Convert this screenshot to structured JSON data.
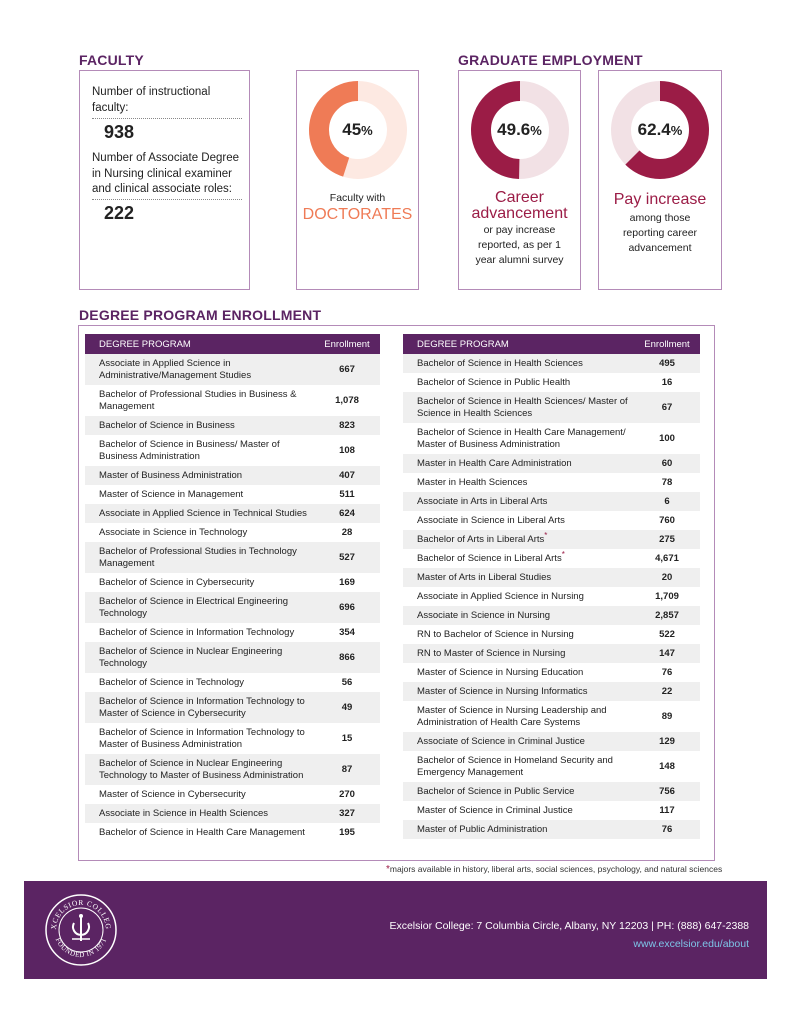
{
  "faculty": {
    "title": "FACULTY",
    "instr_label": "Number of instructional faculty:",
    "instr_value": "938",
    "nursing_label": "Number of Associate Degree in Nursing clinical examiner and clinical associate roles:",
    "nursing_value": "222",
    "doctorates": {
      "percent": "45",
      "pct_value": 45,
      "symbol": "%",
      "caption": "Faculty with",
      "highlight": "DOCTORATES"
    }
  },
  "employment": {
    "title": "GRADUATE EMPLOYMENT",
    "career": {
      "percent": "49.6",
      "pct_value": 49.6,
      "symbol": "%",
      "headline": "Career advancement",
      "caption": "or pay increase reported, as per 1 year alumni survey"
    },
    "pay": {
      "percent": "62.4",
      "pct_value": 62.4,
      "symbol": "%",
      "headline": "Pay increase",
      "caption": "among those reporting career advancement"
    }
  },
  "enrollment": {
    "title": "DEGREE PROGRAM ENROLLMENT",
    "col_program": "DEGREE PROGRAM",
    "col_enrollment": "Enrollment",
    "left": [
      {
        "program": "Associate in Applied Science in Administrative/Management Studies",
        "count": "667"
      },
      {
        "program": "Bachelor of Professional Studies in Business & Management",
        "count": "1,078"
      },
      {
        "program": "Bachelor of Science in Business",
        "count": "823"
      },
      {
        "program": "Bachelor of Science in Business/ Master of Business Administration",
        "count": "108"
      },
      {
        "program": "Master of Business Administration",
        "count": "407"
      },
      {
        "program": "Master of Science in Management",
        "count": "511"
      },
      {
        "program": "Associate in Applied Science in Technical Studies",
        "count": "624"
      },
      {
        "program": "Associate in Science in Technology",
        "count": "28"
      },
      {
        "program": "Bachelor of Professional Studies in Technology Management",
        "count": "527"
      },
      {
        "program": "Bachelor of Science in Cybersecurity",
        "count": "169"
      },
      {
        "program": "Bachelor of Science in Electrical Engineering Technology",
        "count": "696"
      },
      {
        "program": "Bachelor of Science in Information Technology",
        "count": "354"
      },
      {
        "program": "Bachelor of Science in Nuclear Engineering Technology",
        "count": "866"
      },
      {
        "program": "Bachelor of Science in Technology",
        "count": "56"
      },
      {
        "program": "Bachelor of Science in Information Technology to Master of Science in Cybersecurity",
        "count": "49"
      },
      {
        "program": "Bachelor of Science in Information Technology to Master of Business Administration",
        "count": "15"
      },
      {
        "program": "Bachelor of Science in Nuclear Engineering Technology to Master of Business Administration",
        "count": "87"
      },
      {
        "program": "Master of Science in Cybersecurity",
        "count": "270"
      },
      {
        "program": "Associate in Science in Health Sciences",
        "count": "327"
      },
      {
        "program": "Bachelor of Science in Health Care Management",
        "count": "195"
      }
    ],
    "right": [
      {
        "program": "Bachelor of Science in Health Sciences",
        "count": "495"
      },
      {
        "program": "Bachelor of Science in Public Health",
        "count": "16"
      },
      {
        "program": "Bachelor of Science in Health Sciences/ Master of Science in Health Sciences",
        "count": "67"
      },
      {
        "program": "Bachelor of Science in Health Care Management/ Master of Business Administration",
        "count": "100"
      },
      {
        "program": "Master in Health Care Administration",
        "count": "60"
      },
      {
        "program": "Master in Health Sciences",
        "count": "78"
      },
      {
        "program": "Associate in Arts in Liberal Arts",
        "count": "6"
      },
      {
        "program": "Associate in Science in Liberal Arts",
        "count": "760"
      },
      {
        "program": "Bachelor of Arts in Liberal Arts",
        "count": "275",
        "asterisk": "*"
      },
      {
        "program": "Bachelor of Science in Liberal Arts",
        "count": "4,671",
        "asterisk": "*"
      },
      {
        "program": "Master of Arts in Liberal Studies",
        "count": "20"
      },
      {
        "program": "Associate in Applied Science in Nursing",
        "count": "1,709"
      },
      {
        "program": "Associate in Science in Nursing",
        "count": "2,857"
      },
      {
        "program": "RN to Bachelor of Science in Nursing",
        "count": "522"
      },
      {
        "program": "RN to Master of Science in Nursing",
        "count": "147"
      },
      {
        "program": "Master of Science in Nursing Education",
        "count": "76"
      },
      {
        "program": "Master of Science in Nursing Informatics",
        "count": "22"
      },
      {
        "program": "Master of Science in Nursing Leadership and Administration of Health Care Systems",
        "count": "89"
      },
      {
        "program": "Associate of Science in Criminal Justice",
        "count": "129"
      },
      {
        "program": "Bachelor of Science in Homeland Security and Emergency Management",
        "count": "148"
      },
      {
        "program": "Bachelor of Science in Public Service",
        "count": "756"
      },
      {
        "program": "Master of Science in Criminal Justice",
        "count": "117"
      },
      {
        "program": "Master of Public Administration",
        "count": "76"
      }
    ],
    "footnote_star": "*",
    "footnote": "majors available in history, liberal arts, social sciences, psychology, and natural sciences"
  },
  "footer": {
    "address": "Excelsior College:  7 Columbia Circle, Albany, NY 12203  |  PH: (888) 647-2388",
    "url": "www.excelsior.edu/about",
    "seal_top": "EXCELSIOR COLLEGE",
    "seal_bottom": "FOUNDED IN 1971"
  },
  "colors": {
    "brand_purple": "#5b2463",
    "orange": "#ef7b56",
    "orange_light": "#fde9e2",
    "maroon": "#9b1c46",
    "maroon_light": "#f2e1e5",
    "link_blue": "#7ec5e8"
  }
}
